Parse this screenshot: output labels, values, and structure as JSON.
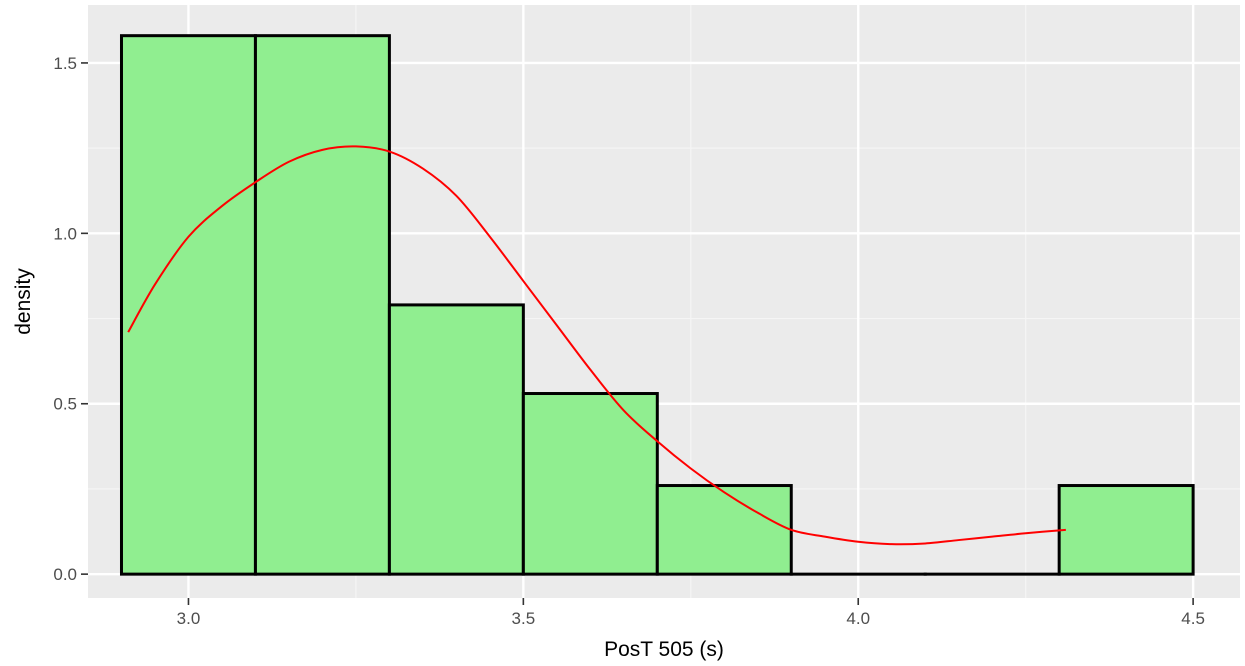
{
  "chart_data": {
    "type": "histogram",
    "xlabel": "PosT 505 (s)",
    "ylabel": "density",
    "xlim": [
      2.85,
      4.57
    ],
    "ylim": [
      -0.07,
      1.67
    ],
    "x_ticks": [
      3.0,
      3.5,
      4.0,
      4.5
    ],
    "x_tick_labels": [
      "3.0",
      "3.5",
      "4.0",
      "4.5"
    ],
    "y_ticks": [
      0.0,
      0.5,
      1.0,
      1.5
    ],
    "y_tick_labels": [
      "0.0",
      "0.5",
      "1.0",
      "1.5"
    ],
    "grid": true,
    "bins": [
      {
        "x0": 2.9,
        "x1": 3.1,
        "density": 1.58
      },
      {
        "x0": 3.1,
        "x1": 3.3,
        "density": 1.58
      },
      {
        "x0": 3.3,
        "x1": 3.5,
        "density": 0.79
      },
      {
        "x0": 3.5,
        "x1": 3.7,
        "density": 0.53
      },
      {
        "x0": 3.7,
        "x1": 3.9,
        "density": 0.26
      },
      {
        "x0": 3.9,
        "x1": 4.1,
        "density": 0.0
      },
      {
        "x0": 4.1,
        "x1": 4.3,
        "density": 0.0
      },
      {
        "x0": 4.3,
        "x1": 4.5,
        "density": 0.26
      }
    ],
    "density_curve": {
      "x": [
        2.91,
        2.95,
        3.0,
        3.05,
        3.1,
        3.15,
        3.2,
        3.25,
        3.3,
        3.35,
        3.4,
        3.45,
        3.5,
        3.55,
        3.6,
        3.65,
        3.7,
        3.75,
        3.8,
        3.85,
        3.9,
        3.95,
        4.0,
        4.05,
        4.1,
        4.15,
        4.2,
        4.25,
        4.31
      ],
      "y": [
        0.71,
        0.85,
        0.99,
        1.08,
        1.15,
        1.21,
        1.245,
        1.255,
        1.24,
        1.19,
        1.11,
        0.99,
        0.86,
        0.73,
        0.6,
        0.48,
        0.39,
        0.31,
        0.24,
        0.18,
        0.13,
        0.11,
        0.095,
        0.088,
        0.09,
        0.1,
        0.11,
        0.12,
        0.13
      ]
    },
    "colors": {
      "panel_background": "#ebebeb",
      "grid_major": "#ffffff",
      "grid_minor": "#f5f5f5",
      "bar_fill": "#90ee90",
      "bar_outline": "#000000",
      "density_line": "#ff0000"
    }
  }
}
